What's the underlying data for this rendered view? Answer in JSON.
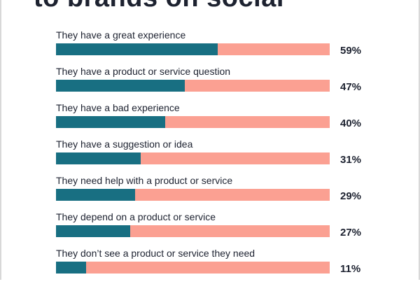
{
  "title": "to brands on social",
  "colors": {
    "filled": "#186f82",
    "remainder": "#fba092"
  },
  "chart_data": {
    "type": "bar",
    "orientation": "horizontal",
    "title": "to brands on social",
    "categories": [
      "They have a great experience",
      "They have a product or service question",
      "They have a bad experience",
      "They have a suggestion or idea",
      "They need help with a product or service",
      "They depend on a product or service",
      "They don’t see a product or service they need"
    ],
    "values": [
      59,
      47,
      40,
      31,
      29,
      27,
      11
    ],
    "value_labels": [
      "59%",
      "47%",
      "40%",
      "31%",
      "29%",
      "27%",
      "11%"
    ],
    "xlim": [
      0,
      100
    ],
    "grid": false
  }
}
